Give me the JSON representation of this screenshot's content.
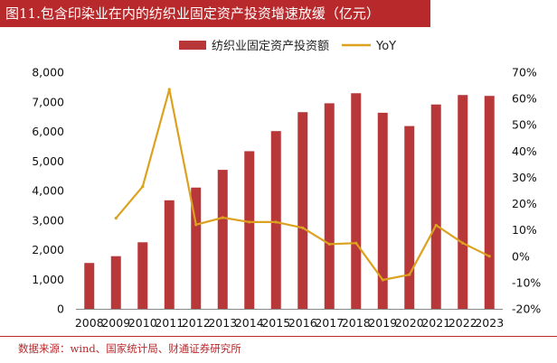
{
  "header": {
    "title": "图11.包含印染业在内的纺织业固定资产投资增速放缓（亿元）"
  },
  "footer": {
    "source": "数据来源：wind、国家统计局、财通证券研究所"
  },
  "colors": {
    "brand": "#b8292c",
    "bar": "#b8383a",
    "line": "#dca21f"
  },
  "chart_data": {
    "type": "bar",
    "categories": [
      "2008",
      "2009",
      "2010",
      "2011",
      "2012",
      "2013",
      "2014",
      "2015",
      "2016",
      "2017",
      "2018",
      "2019",
      "2020",
      "2021",
      "2022",
      "2023"
    ],
    "series": [
      {
        "name": "纺织业固定资产投资额",
        "type": "bar",
        "axis": "left",
        "values": [
          1550,
          1780,
          2250,
          3670,
          4100,
          4700,
          5330,
          6010,
          6650,
          6950,
          7290,
          6630,
          6180,
          6910,
          7230,
          7200
        ]
      },
      {
        "name": "YoY",
        "type": "line",
        "axis": "right",
        "values": [
          null,
          14.5,
          26.5,
          63.5,
          12.0,
          14.7,
          13.0,
          13.0,
          10.8,
          4.6,
          5.0,
          -9.0,
          -7.0,
          11.8,
          5.0,
          0.0
        ]
      }
    ],
    "left_axis": {
      "min": 0,
      "max": 8000,
      "ticks": [
        "0",
        "1,000",
        "2,000",
        "3,000",
        "4,000",
        "5,000",
        "6,000",
        "7,000",
        "8,000"
      ]
    },
    "right_axis": {
      "min": -20,
      "max": 70,
      "ticks": [
        "-20%",
        "-10%",
        "0%",
        "10%",
        "20%",
        "30%",
        "40%",
        "50%",
        "60%",
        "70%"
      ]
    },
    "legend_position": "top-center",
    "grid": false
  }
}
